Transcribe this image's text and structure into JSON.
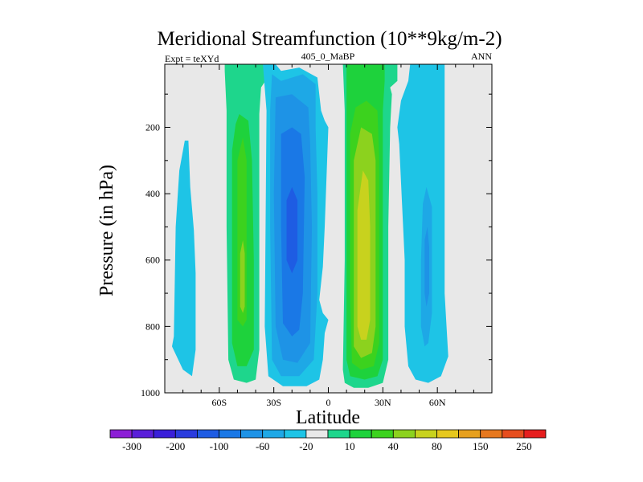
{
  "chart_data": {
    "type": "heatmap",
    "title": "Meridional Streamfunction (10**9kg/m-2)",
    "left_string": "Expt = teXYd",
    "center_string": "405_0_MaBP",
    "right_string": "ANN",
    "xlabel": "Latitude",
    "ylabel": "Pressure (in hPa)",
    "xlim": [
      -90,
      90
    ],
    "ylim": [
      1000,
      10
    ],
    "x_ticks": [
      {
        "value": -60,
        "label": "60S"
      },
      {
        "value": -30,
        "label": "30S"
      },
      {
        "value": 0,
        "label": "0"
      },
      {
        "value": 30,
        "label": "30N"
      },
      {
        "value": 60,
        "label": "60N"
      }
    ],
    "y_ticks": [
      {
        "value": 200,
        "label": "200"
      },
      {
        "value": 400,
        "label": "400"
      },
      {
        "value": 600,
        "label": "600"
      },
      {
        "value": 800,
        "label": "800"
      },
      {
        "value": 1000,
        "label": "1000"
      }
    ],
    "colorbar": {
      "levels": [
        -300,
        -250,
        -200,
        -150,
        -100,
        -80,
        -60,
        -40,
        -20,
        -10,
        10,
        20,
        40,
        60,
        80,
        100,
        150,
        200,
        250,
        300
      ],
      "labels": [
        {
          "level": -300,
          "text": "-300"
        },
        {
          "level": -200,
          "text": "-200"
        },
        {
          "level": -100,
          "text": "-100"
        },
        {
          "level": -60,
          "text": "-60"
        },
        {
          "level": -20,
          "text": "-20"
        },
        {
          "level": 10,
          "text": "10"
        },
        {
          "level": 40,
          "text": "40"
        },
        {
          "level": 80,
          "text": "80"
        },
        {
          "level": 150,
          "text": "150"
        },
        {
          "level": 250,
          "text": "250"
        }
      ],
      "colors": [
        "#8c1fd6",
        "#5a1ed9",
        "#3a1fd9",
        "#2a3cde",
        "#1e5ce3",
        "#1a78e6",
        "#1e93e6",
        "#1ea8e6",
        "#1ec4e6",
        "#e8e8e8",
        "#1ed68c",
        "#1ed23c",
        "#3cd21e",
        "#8cd21e",
        "#c8d21e",
        "#e6c81e",
        "#e6a01e",
        "#e6781e",
        "#e64e1e",
        "#e61e1e"
      ]
    },
    "background_color": "#e8e8e8",
    "regions": [
      {
        "color": "#1ec4e6",
        "pts": [
          [
            -85,
            830
          ],
          [
            -84,
            500
          ],
          [
            -82,
            330
          ],
          [
            -79,
            240
          ],
          [
            -77,
            240
          ],
          [
            -76,
            380
          ],
          [
            -74,
            510
          ],
          [
            -73,
            640
          ],
          [
            -73,
            870
          ],
          [
            -75,
            950
          ],
          [
            -80,
            930
          ],
          [
            -86,
            860
          ]
        ]
      },
      {
        "color": "#1ed68c",
        "pts": [
          [
            -57,
            10
          ],
          [
            -34,
            10
          ],
          [
            -34,
            55
          ],
          [
            -37,
            80
          ],
          [
            -38,
            160
          ],
          [
            -38,
            870
          ],
          [
            -40,
            960
          ],
          [
            -45,
            970
          ],
          [
            -52,
            960
          ],
          [
            -55,
            900
          ],
          [
            -56,
            500
          ],
          [
            -56,
            150
          ],
          [
            -57,
            30
          ]
        ]
      },
      {
        "color": "#1ed23c",
        "pts": [
          [
            -53,
            270
          ],
          [
            -51,
            190
          ],
          [
            -49,
            160
          ],
          [
            -44,
            180
          ],
          [
            -42,
            300
          ],
          [
            -41,
            600
          ],
          [
            -41,
            870
          ],
          [
            -45,
            920
          ],
          [
            -50,
            920
          ],
          [
            -53,
            850
          ],
          [
            -53,
            500
          ]
        ]
      },
      {
        "color": "#3cd21e",
        "pts": [
          [
            -50,
            300
          ],
          [
            -47,
            230
          ],
          [
            -45,
            300
          ],
          [
            -45,
            780
          ],
          [
            -47,
            800
          ],
          [
            -50,
            780
          ]
        ]
      },
      {
        "color": "#8cd21e",
        "pts": [
          [
            -48.5,
            580
          ],
          [
            -47,
            540
          ],
          [
            -46,
            580
          ],
          [
            -46,
            740
          ],
          [
            -47,
            760
          ],
          [
            -48.5,
            740
          ]
        ]
      },
      {
        "color": "#1ec4e6",
        "pts": [
          [
            -36,
            10
          ],
          [
            -29,
            10
          ],
          [
            -26,
            30
          ],
          [
            -16,
            20
          ],
          [
            -6,
            50
          ],
          [
            -4,
            150
          ],
          [
            -2,
            180
          ],
          [
            0,
            200
          ],
          [
            -2,
            500
          ],
          [
            -3,
            620
          ],
          [
            -5,
            720
          ],
          [
            -3,
            760
          ],
          [
            0,
            780
          ],
          [
            -2,
            820
          ],
          [
            -3,
            900
          ],
          [
            -5,
            960
          ],
          [
            -12,
            980
          ],
          [
            -25,
            980
          ],
          [
            -33,
            950
          ],
          [
            -35,
            800
          ],
          [
            -34,
            150
          ]
        ]
      },
      {
        "color": "#1ea8e6",
        "pts": [
          [
            -31,
            40
          ],
          [
            -26,
            60
          ],
          [
            -14,
            40
          ],
          [
            -7,
            70
          ],
          [
            -7,
            200
          ],
          [
            -6,
            400
          ],
          [
            -6,
            700
          ],
          [
            -8,
            900
          ],
          [
            -16,
            950
          ],
          [
            -26,
            950
          ],
          [
            -31,
            900
          ],
          [
            -32,
            500
          ],
          [
            -32,
            150
          ]
        ]
      },
      {
        "color": "#1e93e6",
        "pts": [
          [
            -29,
            110
          ],
          [
            -20,
            100
          ],
          [
            -11,
            140
          ],
          [
            -10,
            250
          ],
          [
            -9,
            500
          ],
          [
            -10,
            850
          ],
          [
            -17,
            910
          ],
          [
            -25,
            900
          ],
          [
            -29,
            800
          ],
          [
            -30,
            400
          ]
        ]
      },
      {
        "color": "#1a78e6",
        "pts": [
          [
            -26,
            220
          ],
          [
            -20,
            200
          ],
          [
            -15,
            220
          ],
          [
            -13,
            350
          ],
          [
            -14,
            700
          ],
          [
            -16,
            810
          ],
          [
            -20,
            830
          ],
          [
            -25,
            790
          ],
          [
            -26,
            500
          ]
        ]
      },
      {
        "color": "#1e5ce3",
        "pts": [
          [
            -23,
            420
          ],
          [
            -20,
            380
          ],
          [
            -17,
            420
          ],
          [
            -17,
            600
          ],
          [
            -20,
            640
          ],
          [
            -23,
            600
          ]
        ]
      },
      {
        "color": "#1ed68c",
        "pts": [
          [
            8,
            10
          ],
          [
            38,
            10
          ],
          [
            38,
            60
          ],
          [
            34,
            80
          ],
          [
            35,
            100
          ],
          [
            34,
            200
          ],
          [
            33,
            500
          ],
          [
            33,
            900
          ],
          [
            30,
            970
          ],
          [
            22,
            985
          ],
          [
            14,
            985
          ],
          [
            9,
            970
          ],
          [
            8,
            930
          ],
          [
            9,
            600
          ],
          [
            9,
            150
          ]
        ]
      },
      {
        "color": "#1ed23c",
        "pts": [
          [
            10,
            10
          ],
          [
            31,
            10
          ],
          [
            31,
            60
          ],
          [
            30,
            150
          ],
          [
            30,
            500
          ],
          [
            30,
            900
          ],
          [
            27,
            950
          ],
          [
            20,
            960
          ],
          [
            12,
            950
          ],
          [
            10,
            900
          ],
          [
            10,
            150
          ]
        ]
      },
      {
        "color": "#3cd21e",
        "pts": [
          [
            12,
            220
          ],
          [
            15,
            140
          ],
          [
            21,
            120
          ],
          [
            27,
            150
          ],
          [
            28,
            300
          ],
          [
            28,
            850
          ],
          [
            25,
            920
          ],
          [
            18,
            930
          ],
          [
            13,
            910
          ],
          [
            12,
            700
          ]
        ]
      },
      {
        "color": "#8cd21e",
        "pts": [
          [
            14,
            300
          ],
          [
            18,
            200
          ],
          [
            24,
            220
          ],
          [
            26,
            300
          ],
          [
            26,
            800
          ],
          [
            24,
            880
          ],
          [
            18,
            895
          ],
          [
            14,
            860
          ],
          [
            14,
            600
          ]
        ]
      },
      {
        "color": "#c8d21e",
        "pts": [
          [
            16,
            450
          ],
          [
            19,
            330
          ],
          [
            22,
            360
          ],
          [
            23,
            500
          ],
          [
            23,
            780
          ],
          [
            21,
            840
          ],
          [
            18,
            840
          ],
          [
            16,
            800
          ]
        ]
      },
      {
        "color": "#1ec4e6",
        "pts": [
          [
            45,
            10
          ],
          [
            64,
            10
          ],
          [
            64,
            700
          ],
          [
            66,
            890
          ],
          [
            62,
            950
          ],
          [
            55,
            970
          ],
          [
            48,
            960
          ],
          [
            44,
            920
          ],
          [
            42,
            800
          ],
          [
            42,
            600
          ],
          [
            39,
            250
          ],
          [
            38,
            200
          ],
          [
            40,
            120
          ],
          [
            44,
            60
          ]
        ]
      },
      {
        "color": "#1ea8e6",
        "pts": [
          [
            52,
            430
          ],
          [
            54,
            380
          ],
          [
            57,
            440
          ],
          [
            57,
            760
          ],
          [
            55,
            850
          ],
          [
            53,
            860
          ],
          [
            51,
            800
          ],
          [
            51,
            600
          ]
        ]
      },
      {
        "color": "#1e93e6",
        "pts": [
          [
            53,
            540
          ],
          [
            54.5,
            500
          ],
          [
            55.5,
            560
          ],
          [
            55.5,
            700
          ],
          [
            54,
            740
          ],
          [
            53,
            700
          ]
        ]
      }
    ]
  }
}
